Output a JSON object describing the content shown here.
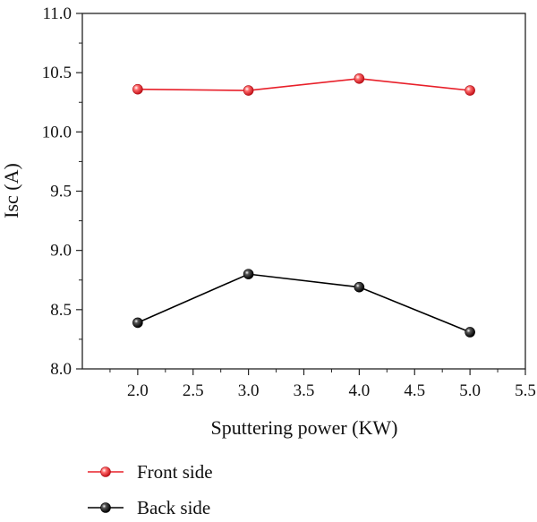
{
  "chart_data": {
    "type": "line",
    "title": "",
    "xlabel": "Sputtering power (KW)",
    "ylabel": "Isc (A)",
    "xlim": [
      1.5,
      5.5
    ],
    "ylim": [
      8.0,
      11.0
    ],
    "xticks": [
      "2.0",
      "2.5",
      "3.0",
      "3.5",
      "4.0",
      "4.5",
      "5.0",
      "5.5"
    ],
    "yticks": [
      "8.0",
      "8.5",
      "9.0",
      "9.5",
      "10.0",
      "10.5",
      "11.0"
    ],
    "grid": false,
    "legend_position": "bottom",
    "series": [
      {
        "name": "Front side",
        "color": "#e8202a",
        "x": [
          2.0,
          3.0,
          4.0,
          5.0
        ],
        "values": [
          10.36,
          10.35,
          10.45,
          10.35
        ]
      },
      {
        "name": "Back side",
        "color": "#000000",
        "x": [
          2.0,
          3.0,
          4.0,
          5.0
        ],
        "values": [
          8.39,
          8.8,
          8.69,
          8.31
        ]
      }
    ]
  }
}
